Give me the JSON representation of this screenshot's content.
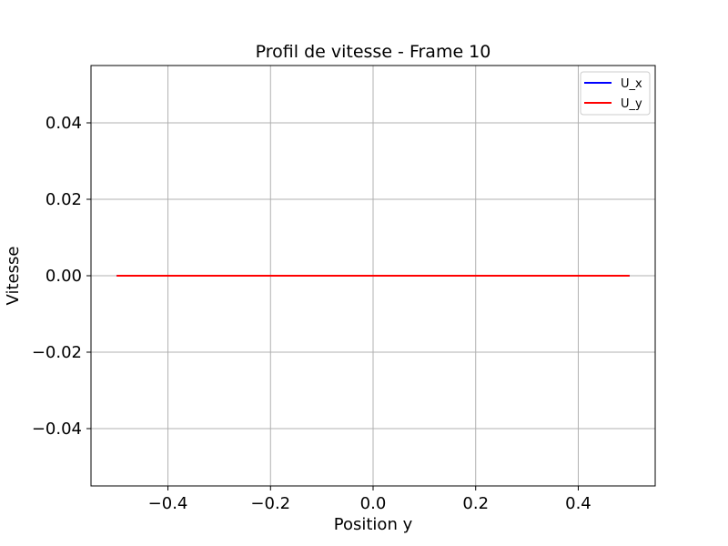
{
  "chart_data": {
    "type": "line",
    "title": "Profil de vitesse - Frame 10",
    "xlabel": "Position y",
    "ylabel": "Vitesse",
    "xlim": [
      -0.55,
      0.55
    ],
    "ylim": [
      -0.055,
      0.055
    ],
    "xticks": [
      -0.4,
      -0.2,
      0.0,
      0.2,
      0.4
    ],
    "xtick_labels": [
      "−0.4",
      "−0.2",
      "0.0",
      "0.2",
      "0.4"
    ],
    "yticks": [
      -0.04,
      -0.02,
      0.0,
      0.02,
      0.04
    ],
    "ytick_labels": [
      "−0.04",
      "−0.02",
      "0.00",
      "0.02",
      "0.04"
    ],
    "grid": true,
    "legend_position": "top-right",
    "series": [
      {
        "name": "U_x",
        "color": "#0000ff",
        "x": [
          -0.5,
          0.5
        ],
        "y": [
          0.0,
          0.0
        ]
      },
      {
        "name": "U_y",
        "color": "#ff0000",
        "x": [
          -0.5,
          0.5
        ],
        "y": [
          0.0,
          0.0
        ]
      }
    ]
  }
}
